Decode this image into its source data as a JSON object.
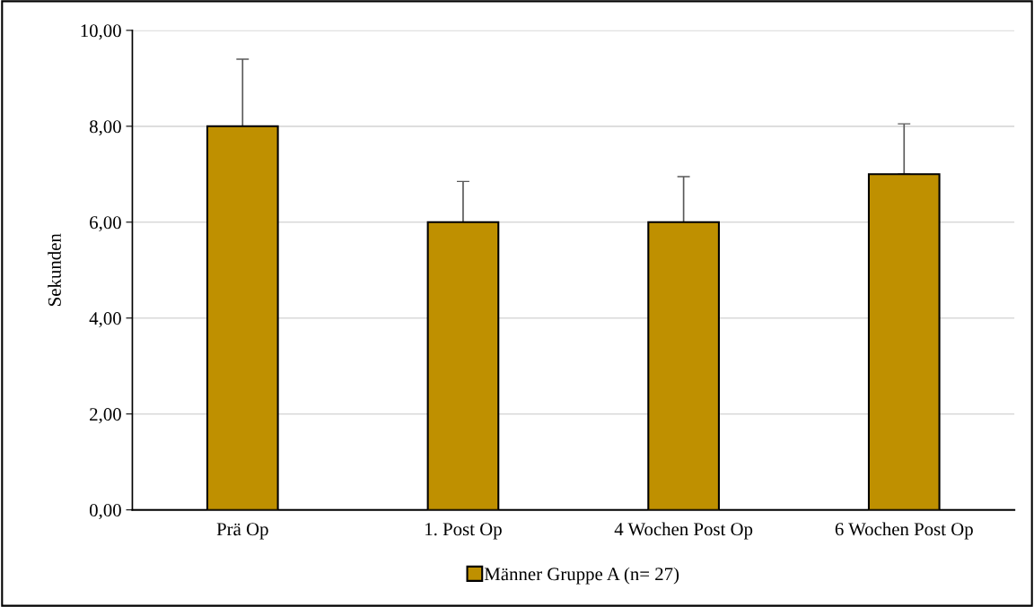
{
  "chart_data": {
    "type": "bar",
    "ylabel": "Sekunden",
    "categories": [
      "Prä Op",
      "1. Post Op",
      "4 Wochen Post Op",
      "6 Wochen Post Op"
    ],
    "series": [
      {
        "name": "Männer Gruppe A (n= 27)",
        "color": "#bf9000",
        "values": [
          8.0,
          6.0,
          6.0,
          7.0
        ],
        "errors": [
          [
            8.0,
            9.4
          ],
          [
            6.0,
            6.85
          ],
          [
            6.0,
            6.95
          ],
          [
            7.0,
            8.05
          ]
        ]
      }
    ],
    "ylim": [
      0,
      10
    ],
    "yticks": [
      {
        "value": 0,
        "label": "0,00"
      },
      {
        "value": 2,
        "label": "2,00"
      },
      {
        "value": 4,
        "label": "4,00"
      },
      {
        "value": 6,
        "label": "6,00"
      },
      {
        "value": 8,
        "label": "8,00"
      },
      {
        "value": 10,
        "label": "10,00"
      }
    ],
    "grid": "y",
    "legend": "bottom"
  }
}
